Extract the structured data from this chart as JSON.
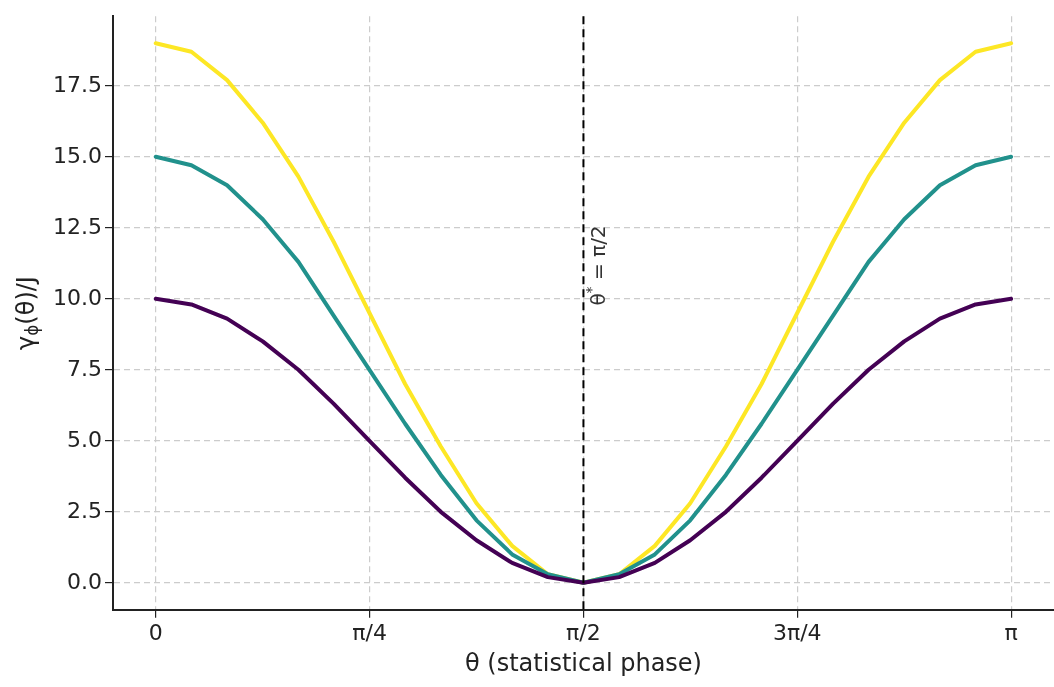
{
  "chart_data": {
    "type": "line",
    "xlabel": "θ (statistical phase)",
    "ylabel": "γ$_{ϕ}$(θ)/J",
    "x": [
      0,
      0.131,
      0.262,
      0.393,
      0.524,
      0.654,
      0.785,
      0.916,
      1.047,
      1.178,
      1.309,
      1.44,
      1.5708,
      1.702,
      1.833,
      1.963,
      2.094,
      2.225,
      2.356,
      2.487,
      2.618,
      2.749,
      2.88,
      3.011,
      3.1416
    ],
    "series": [
      {
        "color": "#440154",
        "values": [
          10,
          9.8,
          9.3,
          8.5,
          7.5,
          6.3,
          5,
          3.7,
          2.5,
          1.5,
          0.7,
          0.2,
          0,
          0.2,
          0.7,
          1.5,
          2.5,
          3.7,
          5,
          6.3,
          7.5,
          8.5,
          9.3,
          9.8,
          10
        ]
      },
      {
        "color": "#21918c",
        "values": [
          15,
          14.7,
          14,
          12.8,
          11.3,
          9.4,
          7.5,
          5.6,
          3.8,
          2.2,
          1,
          0.3,
          0,
          0.3,
          1,
          2.2,
          3.8,
          5.6,
          7.5,
          9.4,
          11.3,
          12.8,
          14,
          14.7,
          15
        ]
      },
      {
        "color": "#fde725",
        "values": [
          19,
          18.7,
          17.7,
          16.2,
          14.3,
          12,
          9.5,
          7,
          4.8,
          2.8,
          1.3,
          0.3,
          0,
          0.3,
          1.3,
          2.8,
          4.8,
          7,
          9.5,
          12,
          14.3,
          16.2,
          17.7,
          18.7,
          19
        ]
      }
    ],
    "xlim": [
      -0.157,
      3.299
    ],
    "ylim": [
      -0.95,
      19.95
    ],
    "xticks": [
      0,
      {
        "value": 0.7854,
        "label": "π/4"
      },
      {
        "value": 1.5708,
        "label": "π/2"
      },
      {
        "value": 2.3562,
        "label": "3π/4"
      },
      {
        "value": 3.1416,
        "label": "π"
      }
    ],
    "yticks": [
      {
        "value": 0,
        "label": "0.0"
      },
      {
        "value": 2.5,
        "label": "2.5"
      },
      {
        "value": 5,
        "label": "5.0"
      },
      {
        "value": 7.5,
        "label": "7.5"
      },
      {
        "value": 10,
        "label": "10.0"
      },
      {
        "value": 12.5,
        "label": "12.5"
      },
      {
        "value": 15,
        "label": "15.0"
      },
      {
        "value": 17.5,
        "label": "17.5"
      }
    ],
    "ref_lines": [
      {
        "axis": "x",
        "value": 1.5708,
        "label": "θ$^{*}$ = π/2",
        "color": "#000000",
        "line_style": "dashed"
      }
    ],
    "grid": true,
    "legend": false,
    "marker": "none",
    "line_style": "solid"
  }
}
